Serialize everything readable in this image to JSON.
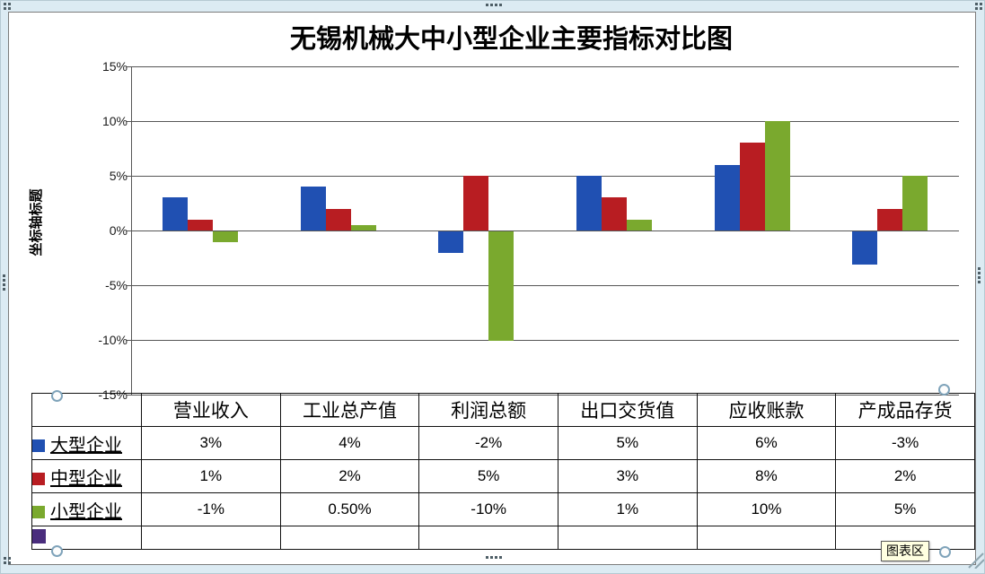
{
  "window": {
    "tooltip_label": "图表区"
  },
  "chart_data": {
    "type": "bar",
    "title": "无锡机械大中小型企业主要指标对比图",
    "y_axis_title": "坐标轴标题",
    "categories": [
      "营业收入",
      "工业总产值",
      "利润总额",
      "出口交货值",
      "应收账款",
      "产成品存货"
    ],
    "series": [
      {
        "name": "大型企业",
        "color": "#2050B2",
        "values": [
          3,
          4,
          -2,
          5,
          6,
          -3
        ],
        "display": [
          "3%",
          "4%",
          "-2%",
          "5%",
          "6%",
          "-3%"
        ]
      },
      {
        "name": "中型企业",
        "color": "#B81D22",
        "values": [
          1,
          2,
          5,
          3,
          8,
          2
        ],
        "display": [
          "1%",
          "2%",
          "5%",
          "3%",
          "8%",
          "2%"
        ]
      },
      {
        "name": "小型企业",
        "color": "#7AA92E",
        "values": [
          -1,
          0.5,
          -10,
          1,
          10,
          5
        ],
        "display": [
          "-1%",
          "0.50%",
          "-10%",
          "1%",
          "10%",
          "5%"
        ]
      }
    ],
    "extra_legend": {
      "name": "",
      "color": "#4A2D7D"
    },
    "y_ticks": [
      {
        "label": "15%",
        "value": 15
      },
      {
        "label": "10%",
        "value": 10
      },
      {
        "label": "5%",
        "value": 5
      },
      {
        "label": "0%",
        "value": 0
      },
      {
        "label": "-5%",
        "value": -5
      },
      {
        "label": "-10%",
        "value": -10
      },
      {
        "label": "-15%",
        "value": -15
      }
    ],
    "ylim": [
      -15,
      15
    ],
    "grid": true,
    "legend_position": "table-left-column"
  }
}
